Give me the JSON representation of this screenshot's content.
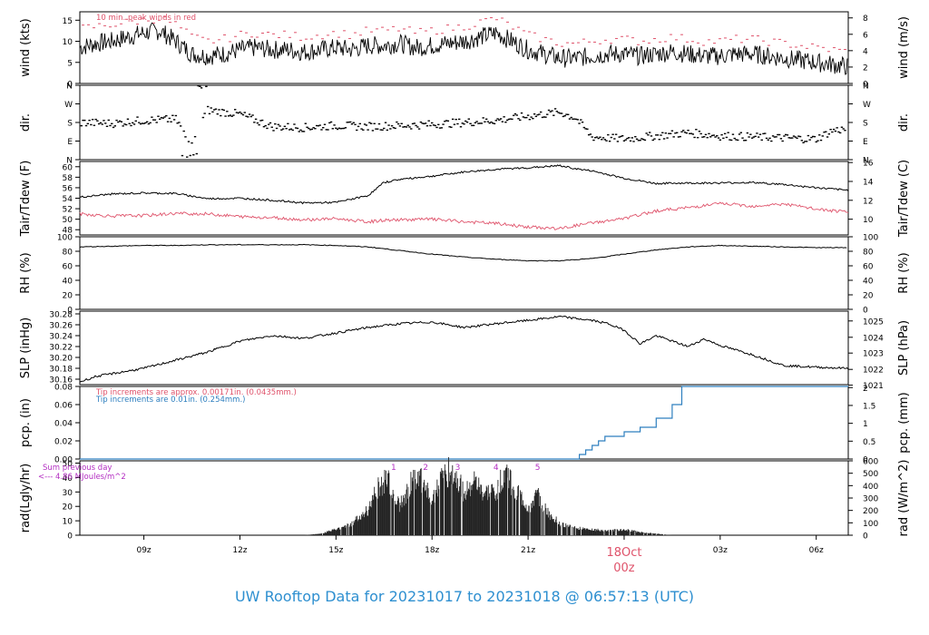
{
  "footer_title": "UW Rooftop Data for 20231017  to  20231018 @ 06:57:13  (UTC)",
  "colors": {
    "line": "#000000",
    "peak": "#df536b",
    "dew": "#df536b",
    "pcp": "#2e7fbf",
    "annot_purple": "#b32ec2",
    "date_marker": "#df536b",
    "footer": "#2e8fd0"
  },
  "time_axis": {
    "range_hours_utc": [
      7.0,
      31.0
    ],
    "ticks": [
      {
        "hour": 9,
        "label": "09z"
      },
      {
        "hour": 12,
        "label": "12z"
      },
      {
        "hour": 15,
        "label": "15z"
      },
      {
        "hour": 18,
        "label": "18z"
      },
      {
        "hour": 21,
        "label": "21z"
      },
      {
        "hour": 24,
        "label": "00z"
      },
      {
        "hour": 27,
        "label": "03z"
      },
      {
        "hour": 30,
        "label": "06z"
      }
    ],
    "date_marker": {
      "hour": 24,
      "date": "18Oct",
      "time": "00z"
    }
  },
  "panels": {
    "wind": {
      "ylabel_left": "wind (kts)",
      "ylabel_right": "wind (m/s)",
      "ylim": [
        0,
        17
      ],
      "ticks_left": [
        "0",
        "5",
        "10",
        "15"
      ],
      "right_ticks": [
        {
          "v": 0,
          "l": "0"
        },
        {
          "v": 3.89,
          "l": "2"
        },
        {
          "v": 7.78,
          "l": "4"
        },
        {
          "v": 11.66,
          "l": "6"
        },
        {
          "v": 15.55,
          "l": "8"
        }
      ],
      "legend": "10 min. peak winds in red"
    },
    "dir": {
      "ylabel_left": "dir.",
      "ylabel_right": "dir.",
      "ticks": [
        {
          "v": 0,
          "l": "N"
        },
        {
          "v": 90,
          "l": "E"
        },
        {
          "v": 180,
          "l": "S"
        },
        {
          "v": 270,
          "l": "W"
        },
        {
          "v": 360,
          "l": "N"
        }
      ]
    },
    "temp": {
      "ylabel_left": "Tair/Tdew (F)",
      "ylabel_right": "Tair/Tdew (C)",
      "ylim": [
        47,
        61
      ],
      "ticks_left": [
        "48",
        "50",
        "52",
        "54",
        "56",
        "58",
        "60"
      ],
      "right_ticks": [
        {
          "v": 50,
          "l": "10"
        },
        {
          "v": 53.6,
          "l": "12"
        },
        {
          "v": 57.2,
          "l": "14"
        },
        {
          "v": 60.8,
          "l": "16"
        }
      ]
    },
    "rh": {
      "ylabel_left": "RH (%)",
      "ylabel_right": "RH (%)",
      "ylim": [
        0,
        100
      ],
      "ticks": [
        "0",
        "20",
        "40",
        "60",
        "80",
        "100"
      ]
    },
    "slp": {
      "ylabel_left": "SLP (inHg)",
      "ylabel_right": "SLP (hPa)",
      "ylim": [
        30.15,
        30.285
      ],
      "ticks_left": [
        "30.16",
        "30.18",
        "30.20",
        "30.22",
        "30.24",
        "30.26",
        "30.28"
      ],
      "right_ticks": [
        {
          "v": 30.149,
          "l": "1021"
        },
        {
          "v": 30.178,
          "l": "1022"
        },
        {
          "v": 30.208,
          "l": "1023"
        },
        {
          "v": 30.237,
          "l": "1024"
        },
        {
          "v": 30.267,
          "l": "1025"
        }
      ]
    },
    "pcp": {
      "ylabel_left": "pcp. (in)",
      "ylabel_right": "pcp. (mm)",
      "ylim": [
        0,
        0.08
      ],
      "ticks_left": [
        "0.00",
        "0.02",
        "0.04",
        "0.06",
        "0.08"
      ],
      "right_ticks": [
        {
          "v": 0,
          "l": "0"
        },
        {
          "v": 0.01969,
          "l": "0.5"
        },
        {
          "v": 0.03937,
          "l": "1"
        },
        {
          "v": 0.05906,
          "l": "1.5"
        },
        {
          "v": 0.07874,
          "l": "2"
        }
      ],
      "note1": "Tip increments are approx. 0.00171in. (0.0435mm.)",
      "note2": "Tip increments are 0.01in. (0.254mm.)"
    },
    "rad": {
      "ylabel_left": "rad(Lgly/hr)",
      "ylabel_right": "rad (W/m^2)",
      "ylim": [
        0,
        51.6
      ],
      "ticks_left": [
        "0",
        "10",
        "20",
        "30",
        "40",
        "50"
      ],
      "right_ticks": [
        {
          "v": 0,
          "l": "0"
        },
        {
          "v": 8.6,
          "l": "100"
        },
        {
          "v": 17.2,
          "l": "200"
        },
        {
          "v": 25.8,
          "l": "300"
        },
        {
          "v": 34.4,
          "l": "400"
        },
        {
          "v": 43.0,
          "l": "500"
        },
        {
          "v": 51.6,
          "l": "600"
        }
      ],
      "sum_line1": "Sum previous day",
      "sum_line2": "<--- 4.86 MJoules/m^2",
      "markers": [
        {
          "hour": 16.8,
          "label": "1"
        },
        {
          "hour": 17.8,
          "label": "2"
        },
        {
          "hour": 18.8,
          "label": "3"
        },
        {
          "hour": 20.0,
          "label": "4"
        },
        {
          "hour": 21.3,
          "label": "5"
        }
      ]
    }
  },
  "chart_data": [
    {
      "type": "line",
      "name": "wind",
      "x": [
        7,
        7.5,
        8,
        8.5,
        9,
        9.5,
        10,
        10.5,
        11,
        11.5,
        12,
        12.5,
        13,
        13.5,
        14,
        14.5,
        15,
        15.5,
        16,
        16.5,
        17,
        17.5,
        18,
        18.5,
        19,
        19.5,
        20,
        20.5,
        21,
        21.5,
        22,
        22.5,
        23,
        23.5,
        24,
        24.5,
        25,
        25.5,
        26,
        26.5,
        27,
        27.5,
        28,
        28.5,
        29,
        29.5,
        30,
        30.5,
        31
      ],
      "series": [
        {
          "name": "wind",
          "values": [
            8.5,
            9.5,
            10,
            11,
            12,
            12.5,
            10,
            7,
            6.5,
            7,
            8,
            8.5,
            8,
            8,
            7.5,
            8,
            8.5,
            8,
            9,
            9,
            9.5,
            8.5,
            9,
            9.5,
            10,
            11,
            12,
            10,
            8,
            7,
            6,
            6,
            6.5,
            7,
            7,
            6.5,
            7,
            7.5,
            7,
            6.5,
            6.5,
            7,
            7,
            6.5,
            6,
            5.5,
            5,
            4.5,
            4
          ]
        },
        {
          "name": "peak",
          "values": [
            13,
            13.5,
            14,
            14.5,
            15,
            15.5,
            14,
            11,
            10,
            10.5,
            11.5,
            12,
            11.5,
            11.5,
            11,
            11.5,
            12,
            11.5,
            12.5,
            12.5,
            13,
            12,
            12.5,
            13,
            13.5,
            14.5,
            15.5,
            13.5,
            11.5,
            10.5,
            9.5,
            9.5,
            10,
            10.5,
            10.5,
            10,
            10.5,
            11,
            10.5,
            10,
            10,
            10.5,
            10.5,
            10,
            9.5,
            9,
            8.5,
            8,
            7.5
          ]
        }
      ]
    },
    {
      "type": "scatter",
      "name": "dir",
      "x": [
        7,
        8,
        9,
        10,
        10.5,
        11,
        12,
        13,
        14,
        15,
        16,
        17,
        18,
        19,
        20,
        21,
        22,
        22.5,
        23,
        24,
        25,
        26,
        27,
        28,
        29,
        30,
        30.5,
        31
      ],
      "series": [
        {
          "name": "dir",
          "values": [
            180,
            175,
            190,
            195,
            80,
            240,
            220,
            160,
            155,
            165,
            160,
            165,
            170,
            180,
            190,
            210,
            230,
            200,
            110,
            100,
            115,
            130,
            115,
            110,
            105,
            100,
            140,
            150
          ]
        }
      ]
    },
    {
      "type": "line",
      "name": "temp",
      "x": [
        7,
        8,
        9,
        10,
        11,
        12,
        13,
        14,
        15,
        16,
        16.5,
        17,
        18,
        19,
        20,
        21,
        22,
        22.5,
        23,
        24,
        25,
        26,
        27,
        28,
        29,
        30,
        31
      ],
      "series": [
        {
          "name": "Tair",
          "values": [
            54.2,
            54.8,
            55.0,
            54.9,
            53.9,
            54.0,
            53.6,
            53.1,
            53.2,
            54.5,
            57.0,
            57.6,
            58.2,
            59.0,
            59.5,
            59.8,
            60.2,
            59.6,
            59.2,
            57.8,
            56.8,
            56.9,
            56.9,
            57.0,
            56.6,
            56.0,
            55.5
          ]
        },
        {
          "name": "Tdew",
          "values": [
            51.0,
            50.6,
            50.7,
            51.1,
            51.0,
            50.5,
            50.3,
            49.9,
            50.1,
            49.5,
            49.8,
            49.9,
            50.0,
            49.5,
            49.2,
            48.5,
            48.2,
            48.8,
            49.3,
            50.1,
            51.6,
            52.2,
            53.0,
            52.5,
            52.9,
            51.9,
            51.3
          ]
        }
      ]
    },
    {
      "type": "line",
      "name": "rh",
      "x": [
        7,
        8,
        9,
        10,
        11,
        12,
        13,
        14,
        15,
        16,
        17,
        18,
        19,
        20,
        21,
        22,
        23,
        24,
        25,
        26,
        27,
        28,
        29,
        30,
        31
      ],
      "series": [
        {
          "name": "RH",
          "values": [
            86,
            87,
            88,
            88,
            89,
            89,
            89,
            89,
            88,
            86,
            81,
            76,
            72,
            69,
            67,
            67,
            70,
            76,
            82,
            86,
            88,
            87,
            86,
            85,
            85
          ]
        }
      ]
    },
    {
      "type": "line",
      "name": "slp",
      "x": [
        7,
        7.5,
        8,
        9,
        10,
        11,
        12,
        13,
        14,
        15,
        16,
        17,
        18,
        19,
        20,
        21,
        22,
        23,
        23.5,
        24,
        24.5,
        25,
        25.5,
        26,
        26.5,
        27,
        28,
        29,
        30,
        31
      ],
      "series": [
        {
          "name": "SLP",
          "values": [
            30.155,
            30.165,
            30.17,
            30.18,
            30.195,
            30.21,
            30.23,
            30.24,
            30.235,
            30.245,
            30.255,
            30.262,
            30.265,
            30.255,
            30.262,
            30.268,
            30.275,
            30.268,
            30.262,
            30.25,
            30.225,
            30.24,
            30.23,
            30.22,
            30.234,
            30.222,
            30.205,
            30.185,
            30.182,
            30.18
          ]
        }
      ]
    },
    {
      "type": "line",
      "name": "pcp",
      "x": [
        7,
        22.5,
        22.6,
        22.8,
        23.0,
        23.2,
        23.4,
        24.0,
        24.5,
        25.0,
        25.5,
        25.8,
        31.0
      ],
      "series": [
        {
          "name": "pcp",
          "values": [
            0,
            0,
            0.005,
            0.01,
            0.015,
            0.02,
            0.025,
            0.03,
            0.035,
            0.045,
            0.06,
            0.08,
            0.08
          ]
        }
      ]
    },
    {
      "type": "area",
      "name": "rad",
      "x": [
        14.0,
        14.5,
        15.0,
        15.5,
        16.0,
        16.3,
        16.6,
        17.0,
        17.3,
        17.6,
        18.0,
        18.3,
        18.6,
        19.0,
        19.3,
        19.6,
        20.0,
        20.3,
        20.6,
        21.0,
        21.3,
        21.6,
        22.0,
        22.5,
        23.0,
        23.5,
        24.0,
        24.5,
        25.0,
        25.5
      ],
      "series": [
        {
          "name": "rad",
          "values": [
            0,
            1,
            4,
            8,
            18,
            32,
            38,
            20,
            35,
            42,
            25,
            40,
            45,
            30,
            37,
            28,
            30,
            44,
            32,
            18,
            27,
            16,
            8,
            5,
            4,
            3,
            4,
            2,
            1,
            0
          ]
        }
      ]
    }
  ]
}
